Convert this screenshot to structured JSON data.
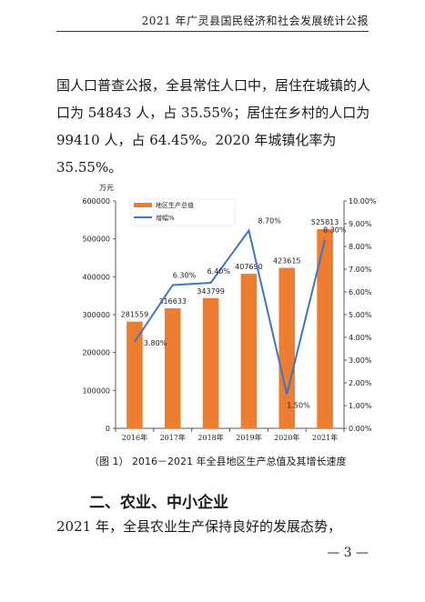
{
  "header": {
    "title": "2021 年广灵县国民经济和社会发展统计公报"
  },
  "paragraph1": "国人口普查公报，全县常住人口中，居住在城镇的人口为 54843 人，占 35.55%；居住在乡村的人口为 99410 人，占 64.45%。2020 年城镇化率为 35.55%。",
  "figure": {
    "caption": "（图 1）  2016－2021 年全县地区生产总值及其增长速度"
  },
  "section": {
    "heading": "二、农业、中小企业"
  },
  "paragraph2": "2021 年，全县农业生产保持良好的发展态势，",
  "page_number": "— 3 —",
  "chart_data": {
    "type": "bar",
    "categories": [
      "2016年",
      "2017年",
      "2018年",
      "2019年",
      "2020年",
      "2021年"
    ],
    "y_unit_label": "万元",
    "ylim": [
      0,
      600000
    ],
    "y_ticks": [
      "0",
      "100000",
      "200000",
      "300000",
      "400000",
      "500000",
      "600000"
    ],
    "y2lim": [
      0,
      10
    ],
    "y2_ticks": [
      "0.00%",
      "1.00%",
      "2.00%",
      "3.00%",
      "4.00%",
      "5.00%",
      "6.00%",
      "7.00%",
      "8.00%",
      "9.00%",
      "10.00%"
    ],
    "series": [
      {
        "name": "地区生产总值",
        "type": "bar",
        "color": "#ed7d31",
        "values": [
          281559,
          316633,
          343799,
          407690,
          423615,
          525813
        ],
        "labels": [
          "281559",
          "316633",
          "343799",
          "407690",
          "423615",
          "525813"
        ]
      },
      {
        "name": "增幅%",
        "type": "line",
        "color": "#4472c4",
        "axis": "right",
        "values": [
          3.8,
          6.3,
          6.4,
          8.7,
          1.5,
          8.3
        ],
        "labels": [
          "3.80%",
          "6.30%",
          "6.40%",
          "8.70%",
          "1.50%",
          "8.30%"
        ]
      }
    ],
    "legend_position": "top-left",
    "grid": false
  }
}
